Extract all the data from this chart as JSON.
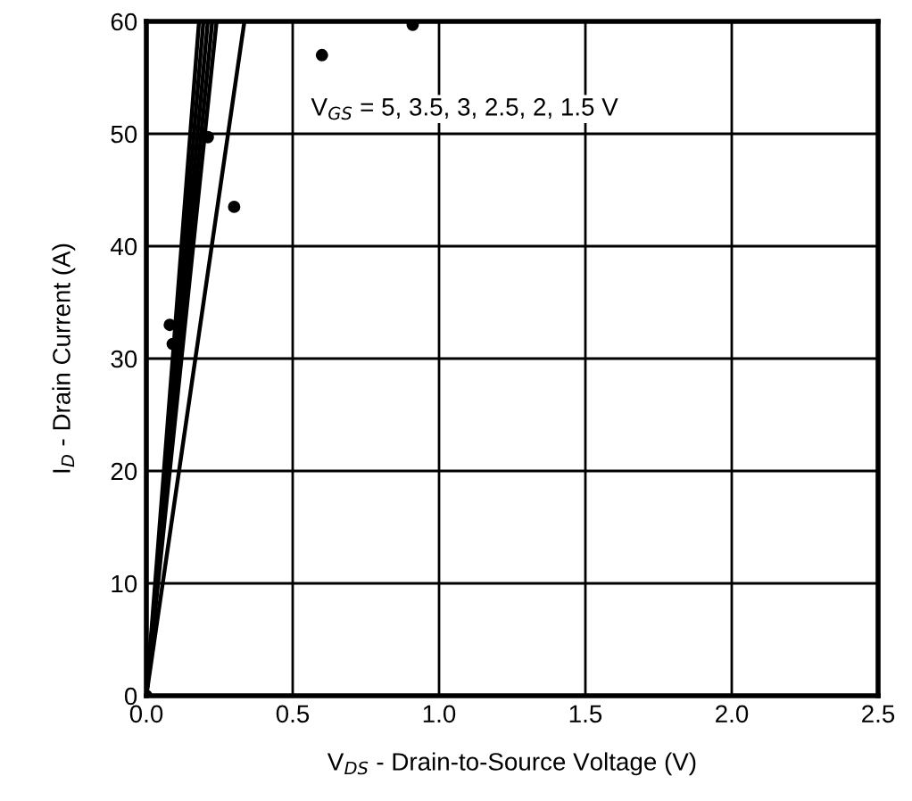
{
  "chart_data": {
    "type": "line",
    "xlabel": "V$_{DS}$ - Drain-to-Source Voltage (V)",
    "ylabel": "I$_{D}$ - Drain Current (A)",
    "annotations": [
      "V$_{GS}$ = 5, 3.5, 3, 2.5, 2, 1.5 V"
    ],
    "series": [
      {
        "color": "#000000",
        "x": [
          0,
          0.18
        ],
        "values": [
          0,
          60
        ]
      },
      {
        "color": "#000000",
        "x": [
          0,
          0.195
        ],
        "values": [
          0,
          60
        ]
      },
      {
        "color": "#000000",
        "x": [
          0,
          0.21
        ],
        "values": [
          0,
          60
        ]
      },
      {
        "color": "#000000",
        "x": [
          0,
          0.225
        ],
        "values": [
          0,
          60
        ]
      },
      {
        "color": "#000000",
        "x": [
          0,
          0.24
        ],
        "values": [
          0,
          60
        ]
      },
      {
        "color": "#000000",
        "x": [
          0,
          0.335
        ],
        "values": [
          0,
          60
        ]
      },
      {
        "type": "scatter",
        "marker": "circle",
        "color": "#000000",
        "x": [
          0,
          0.08,
          0.09,
          0.21,
          0.3,
          0.6,
          0.91
        ],
        "values": [
          0,
          33,
          31.3,
          49.7,
          43.5,
          57,
          59.7
        ]
      }
    ],
    "xlim": [
      0,
      2.5
    ],
    "ylim": [
      0,
      60
    ],
    "xticks": [
      {
        "value": 0,
        "label": "0.0"
      },
      0.5,
      {
        "value": 1,
        "label": "1.0"
      },
      1.5,
      {
        "value": 2,
        "label": "2.0"
      },
      2.5
    ],
    "yticks": [
      0,
      10,
      20,
      30,
      40,
      50,
      60
    ],
    "grid": true,
    "legend": false,
    "marker": "none",
    "line_style": "solid"
  }
}
